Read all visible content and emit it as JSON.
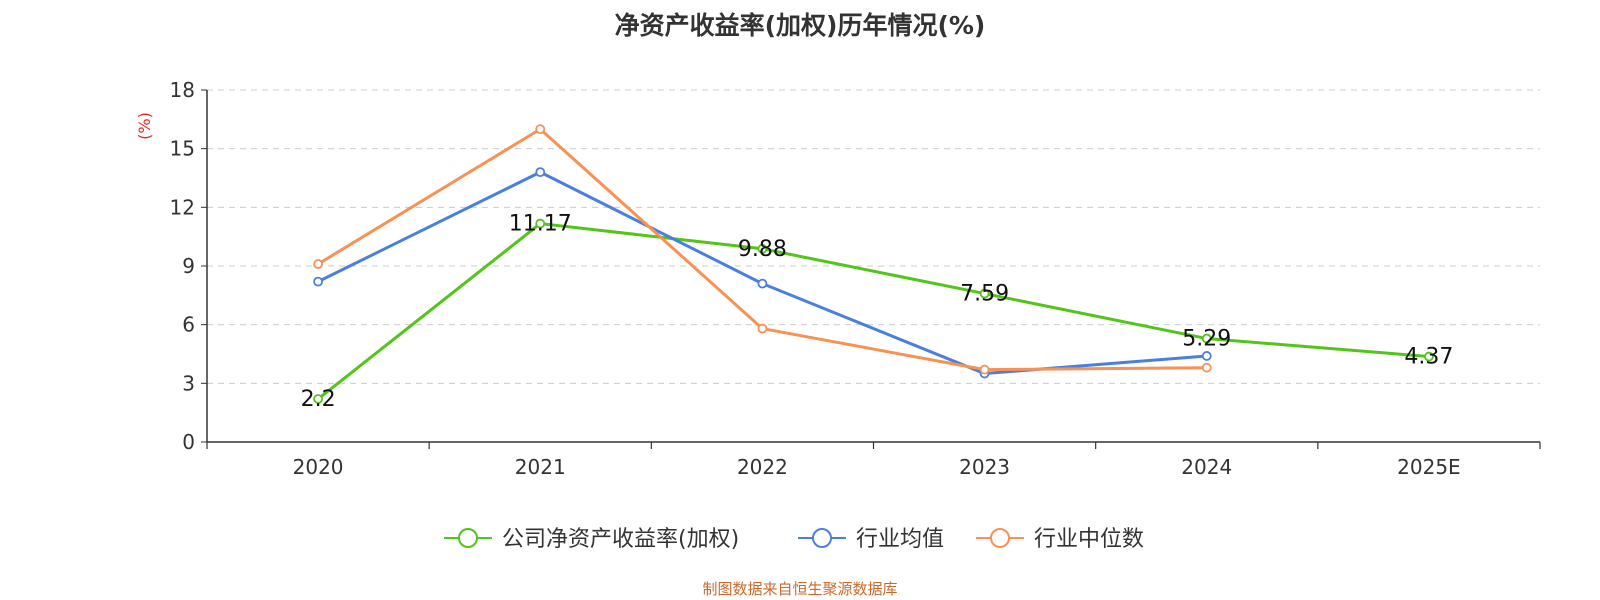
{
  "chart_data": {
    "type": "line",
    "title": "净资产收益率(加权)历年情况(%)",
    "ylabel": "(%)",
    "xlabel": "",
    "categories": [
      "2020",
      "2021",
      "2022",
      "2023",
      "2024",
      "2025E"
    ],
    "ylim": [
      0,
      18
    ],
    "yticks": [
      0,
      3,
      6,
      9,
      12,
      15,
      18
    ],
    "grid": true,
    "legend_position": "bottom",
    "series": [
      {
        "name": "公司净资产收益率(加权)",
        "color": "#52c41a",
        "values": [
          2.2,
          11.17,
          9.88,
          7.59,
          5.29,
          4.37
        ],
        "labels": [
          "2.2",
          "11.17",
          "9.88",
          "7.59",
          "5.29",
          "4.37"
        ]
      },
      {
        "name": "行业均值",
        "color": "#4a7fdc",
        "values": [
          8.2,
          13.8,
          8.1,
          3.5,
          4.4,
          null
        ]
      },
      {
        "name": "行业中位数",
        "color": "#f79154",
        "values": [
          9.1,
          16.0,
          5.8,
          3.7,
          3.8,
          null
        ]
      }
    ]
  },
  "footer": {
    "credit": "制图数据来自恒生聚源数据库"
  }
}
